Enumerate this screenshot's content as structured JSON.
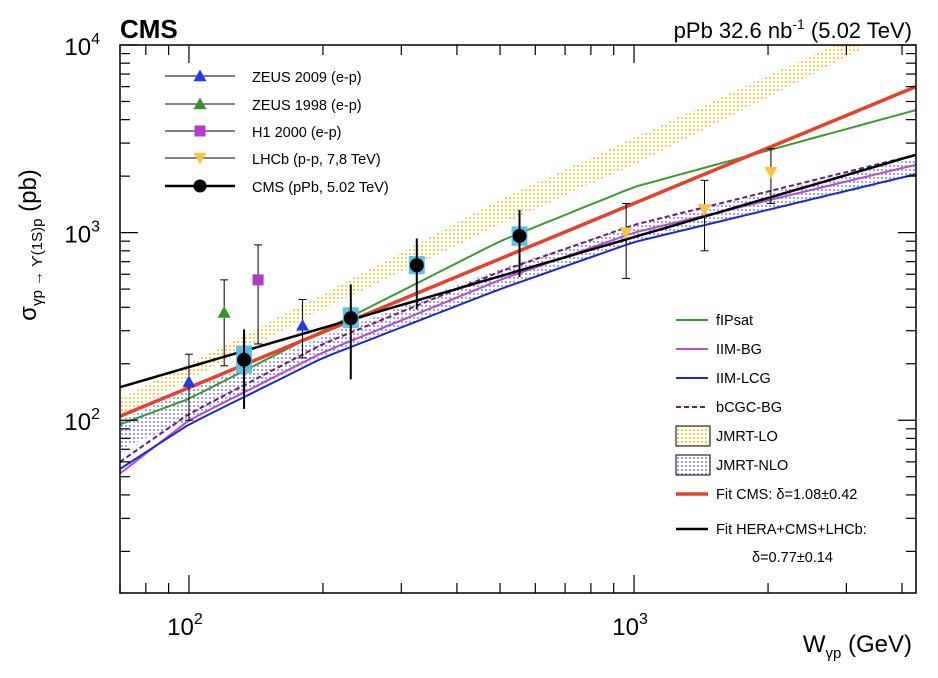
{
  "header": {
    "experiment": "CMS",
    "lumi_prefix": "pPb 32.6 nb",
    "lumi_exp": "-1",
    "lumi_suffix": " (5.02 TeV)"
  },
  "chart_data": {
    "type": "scatter",
    "title": "",
    "xlabel": "W",
    "xlabel_sub": "γp",
    "xlabel_unit": " (GeV)",
    "ylabel": "σ",
    "ylabel_sub": "γp → ϒ(1S)p",
    "ylabel_unit": " (pb)",
    "xscale": "log",
    "yscale": "log",
    "xlim": [
      70,
      4300
    ],
    "ylim": [
      12,
      10000
    ],
    "grid": false,
    "legend_position": "top-left and bottom-right",
    "x_ticks": [
      {
        "value": 100,
        "base": "10",
        "exp": "2"
      },
      {
        "value": 1000,
        "base": "10",
        "exp": "3"
      }
    ],
    "y_ticks": [
      {
        "value": 100,
        "base": "10",
        "exp": "2"
      },
      {
        "value": 1000,
        "base": "10",
        "exp": "3"
      },
      {
        "value": 10000,
        "base": "10",
        "exp": "4"
      }
    ],
    "data_series": [
      {
        "name": "ZEUS 2009 (e-p)",
        "marker": "triangle-up",
        "color": "#1f3de0",
        "points": [
          {
            "x": 100,
            "y": 160,
            "ylo": 100,
            "yhi": 225
          },
          {
            "x": 180,
            "y": 320,
            "ylo": 215,
            "yhi": 440
          }
        ]
      },
      {
        "name": "ZEUS 1998 (e-p)",
        "marker": "triangle-up",
        "color": "#3c8d2f",
        "points": [
          {
            "x": 120,
            "y": 375,
            "ylo": 195,
            "yhi": 560
          }
        ]
      },
      {
        "name": "H1 2000 (e-p)",
        "marker": "square",
        "color": "#b23cc8",
        "points": [
          {
            "x": 143,
            "y": 560,
            "ylo": 255,
            "yhi": 860
          }
        ]
      },
      {
        "name": "LHCb (p-p, 7,8 TeV)",
        "marker": "triangle-down",
        "color": "#f5c242",
        "points": [
          {
            "x": 960,
            "y": 1000,
            "ylo": 570,
            "yhi": 1430
          },
          {
            "x": 1440,
            "y": 1330,
            "ylo": 800,
            "yhi": 1900
          },
          {
            "x": 2030,
            "y": 2100,
            "ylo": 1430,
            "yhi": 2800
          }
        ]
      },
      {
        "name": "CMS (pPb, 5.02 TeV)",
        "marker": "circle",
        "color": "#000000",
        "points": [
          {
            "x": 133,
            "y": 210,
            "ylo": 115,
            "yhi": 305,
            "syst_lo": 178,
            "syst_hi": 250
          },
          {
            "x": 231,
            "y": 350,
            "ylo": 165,
            "yhi": 530,
            "syst_lo": 310,
            "syst_hi": 400
          },
          {
            "x": 325,
            "y": 670,
            "ylo": 390,
            "yhi": 930,
            "syst_lo": 600,
            "syst_hi": 750
          },
          {
            "x": 553,
            "y": 960,
            "ylo": 580,
            "yhi": 1320,
            "syst_lo": 850,
            "syst_hi": 1080
          }
        ]
      }
    ],
    "theory_curves": [
      {
        "name": "fIPsat",
        "style": "solid",
        "color": "#3c9a32",
        "points": [
          [
            70,
            95
          ],
          [
            100,
            130
          ],
          [
            200,
            300
          ],
          [
            500,
            900
          ],
          [
            1000,
            1750
          ],
          [
            4300,
            4500
          ]
        ]
      },
      {
        "name": "IIM-BG",
        "style": "solid",
        "color": "#b04fd0",
        "points": [
          [
            70,
            52
          ],
          [
            100,
            100
          ],
          [
            200,
            230
          ],
          [
            500,
            560
          ],
          [
            1000,
            1000
          ],
          [
            4300,
            2300
          ]
        ]
      },
      {
        "name": "IIM-LCG",
        "style": "solid",
        "color": "#1e2ac8",
        "points": [
          [
            70,
            55
          ],
          [
            100,
            95
          ],
          [
            200,
            215
          ],
          [
            500,
            500
          ],
          [
            1000,
            890
          ],
          [
            4300,
            2050
          ]
        ]
      },
      {
        "name": "bCGC-BG",
        "style": "dashed",
        "color": "#6a1a7a",
        "points": [
          [
            70,
            60
          ],
          [
            100,
            108
          ],
          [
            200,
            255
          ],
          [
            500,
            620
          ],
          [
            1000,
            1100
          ],
          [
            4300,
            2600
          ]
        ]
      },
      {
        "name": "Fit CMS: δ=1.08±0.42",
        "style": "solid",
        "color": "#e8402a",
        "points": [
          [
            70,
            105
          ],
          [
            4300,
            6000
          ]
        ]
      },
      {
        "name": "Fit HERA+CMS+LHCb:",
        "style": "solid",
        "color": "#000000",
        "points": [
          [
            70,
            150
          ],
          [
            4300,
            2600
          ]
        ]
      }
    ],
    "theory_bands": [
      {
        "name": "JMRT-LO",
        "color": "#f5c242",
        "lower": [
          [
            70,
            105
          ],
          [
            100,
            165
          ],
          [
            200,
            390
          ],
          [
            500,
            1100
          ],
          [
            1000,
            2300
          ],
          [
            3200,
            9300
          ]
        ],
        "upper": [
          [
            70,
            130
          ],
          [
            100,
            200
          ],
          [
            200,
            470
          ],
          [
            500,
            1500
          ],
          [
            1000,
            3200
          ],
          [
            3200,
            11500
          ]
        ]
      },
      {
        "name": "JMRT-NLO",
        "color": "#8b93e8",
        "lower": [
          [
            70,
            70
          ],
          [
            100,
            100
          ],
          [
            200,
            220
          ],
          [
            500,
            500
          ],
          [
            1000,
            880
          ],
          [
            4300,
            2000
          ]
        ],
        "upper": [
          [
            70,
            100
          ],
          [
            100,
            145
          ],
          [
            200,
            280
          ],
          [
            500,
            640
          ],
          [
            1000,
            1100
          ],
          [
            4300,
            2500
          ]
        ]
      }
    ],
    "legend_top": [
      {
        "label": "ZEUS 2009 (e-p)"
      },
      {
        "label": "ZEUS 1998 (e-p)"
      },
      {
        "label": "H1 2000 (e-p)"
      },
      {
        "label": "LHCb (p-p, 7,8 TeV)"
      },
      {
        "label": "CMS (pPb, 5.02 TeV)"
      }
    ],
    "legend_bottom": [
      {
        "label": "fIPsat"
      },
      {
        "label": "IIM-BG"
      },
      {
        "label": "IIM-LCG"
      },
      {
        "label": "bCGC-BG"
      },
      {
        "label": "JMRT-LO"
      },
      {
        "label": "JMRT-NLO"
      },
      {
        "label": "Fit CMS: δ=1.08±0.42"
      },
      {
        "label": "Fit HERA+CMS+LHCb:"
      },
      {
        "label": "δ=0.77±0.14"
      }
    ]
  }
}
